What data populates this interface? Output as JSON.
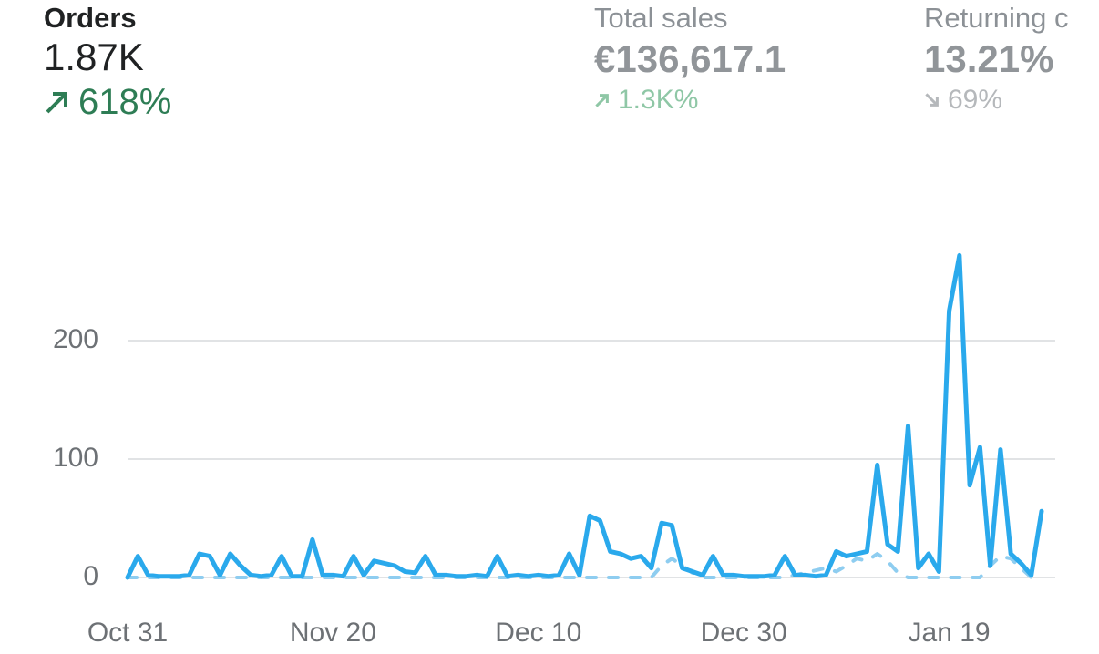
{
  "metrics": [
    {
      "title": "Orders",
      "value": "1.87K",
      "change": "618%"
    },
    {
      "title": "Total sales",
      "value": "€136,617.1",
      "change": "1.3K%"
    },
    {
      "title": "Returning c",
      "value": "13.21%",
      "change": "69%"
    }
  ],
  "chart_data": {
    "type": "line",
    "categories": [
      "Oct 31",
      null,
      null,
      null,
      null,
      null,
      null,
      null,
      null,
      null,
      null,
      null,
      null,
      null,
      null,
      null,
      null,
      null,
      null,
      null,
      "Nov 20",
      null,
      null,
      null,
      null,
      null,
      null,
      null,
      null,
      null,
      null,
      null,
      null,
      null,
      null,
      null,
      null,
      null,
      null,
      null,
      "Dec 10",
      null,
      null,
      null,
      null,
      null,
      null,
      null,
      null,
      null,
      null,
      null,
      null,
      null,
      null,
      null,
      null,
      null,
      null,
      null,
      "Dec 30",
      null,
      null,
      null,
      null,
      null,
      null,
      null,
      null,
      null,
      null,
      null,
      null,
      null,
      null,
      null,
      null,
      null,
      null,
      null,
      "Jan 19",
      null,
      null,
      null,
      null,
      null,
      null,
      null,
      null,
      null
    ],
    "series": [
      {
        "color": "#2aa9ec",
        "dash": false,
        "values": [
          0,
          18,
          2,
          1,
          1,
          1,
          2,
          20,
          18,
          2,
          20,
          10,
          2,
          1,
          2,
          18,
          1,
          1,
          32,
          2,
          2,
          1,
          18,
          2,
          14,
          12,
          10,
          5,
          4,
          18,
          2,
          2,
          1,
          1,
          2,
          1,
          18,
          1,
          2,
          1,
          2,
          1,
          2,
          20,
          2,
          52,
          48,
          22,
          20,
          16,
          18,
          8,
          46,
          44,
          8,
          5,
          2,
          18,
          2,
          2,
          1,
          1,
          1,
          2,
          18,
          2,
          2,
          1,
          2,
          22,
          18,
          20,
          22,
          95,
          28,
          22,
          128,
          8,
          20,
          5,
          225,
          272,
          78,
          110,
          10,
          108,
          20,
          12,
          2,
          56
        ]
      },
      {
        "color": "#8ecdf0",
        "dash": true,
        "values": [
          0,
          0,
          0,
          0,
          0,
          0,
          0,
          0,
          0,
          0,
          0,
          0,
          0,
          0,
          0,
          0,
          0,
          0,
          0,
          0,
          0,
          0,
          0,
          0,
          0,
          0,
          0,
          0,
          0,
          0,
          0,
          0,
          0,
          0,
          0,
          0,
          0,
          0,
          0,
          0,
          0,
          0,
          0,
          0,
          0,
          0,
          0,
          0,
          0,
          0,
          0,
          0,
          10,
          16,
          10,
          4,
          0,
          0,
          0,
          0,
          0,
          0,
          0,
          0,
          0,
          2,
          4,
          6,
          8,
          5,
          10,
          16,
          14,
          20,
          14,
          4,
          0,
          0,
          0,
          0,
          0,
          0,
          0,
          0,
          10,
          18,
          16,
          8,
          0,
          0
        ]
      }
    ],
    "ylim": [
      0,
      290
    ],
    "yticks": [
      0,
      100,
      200
    ],
    "grid": true
  }
}
